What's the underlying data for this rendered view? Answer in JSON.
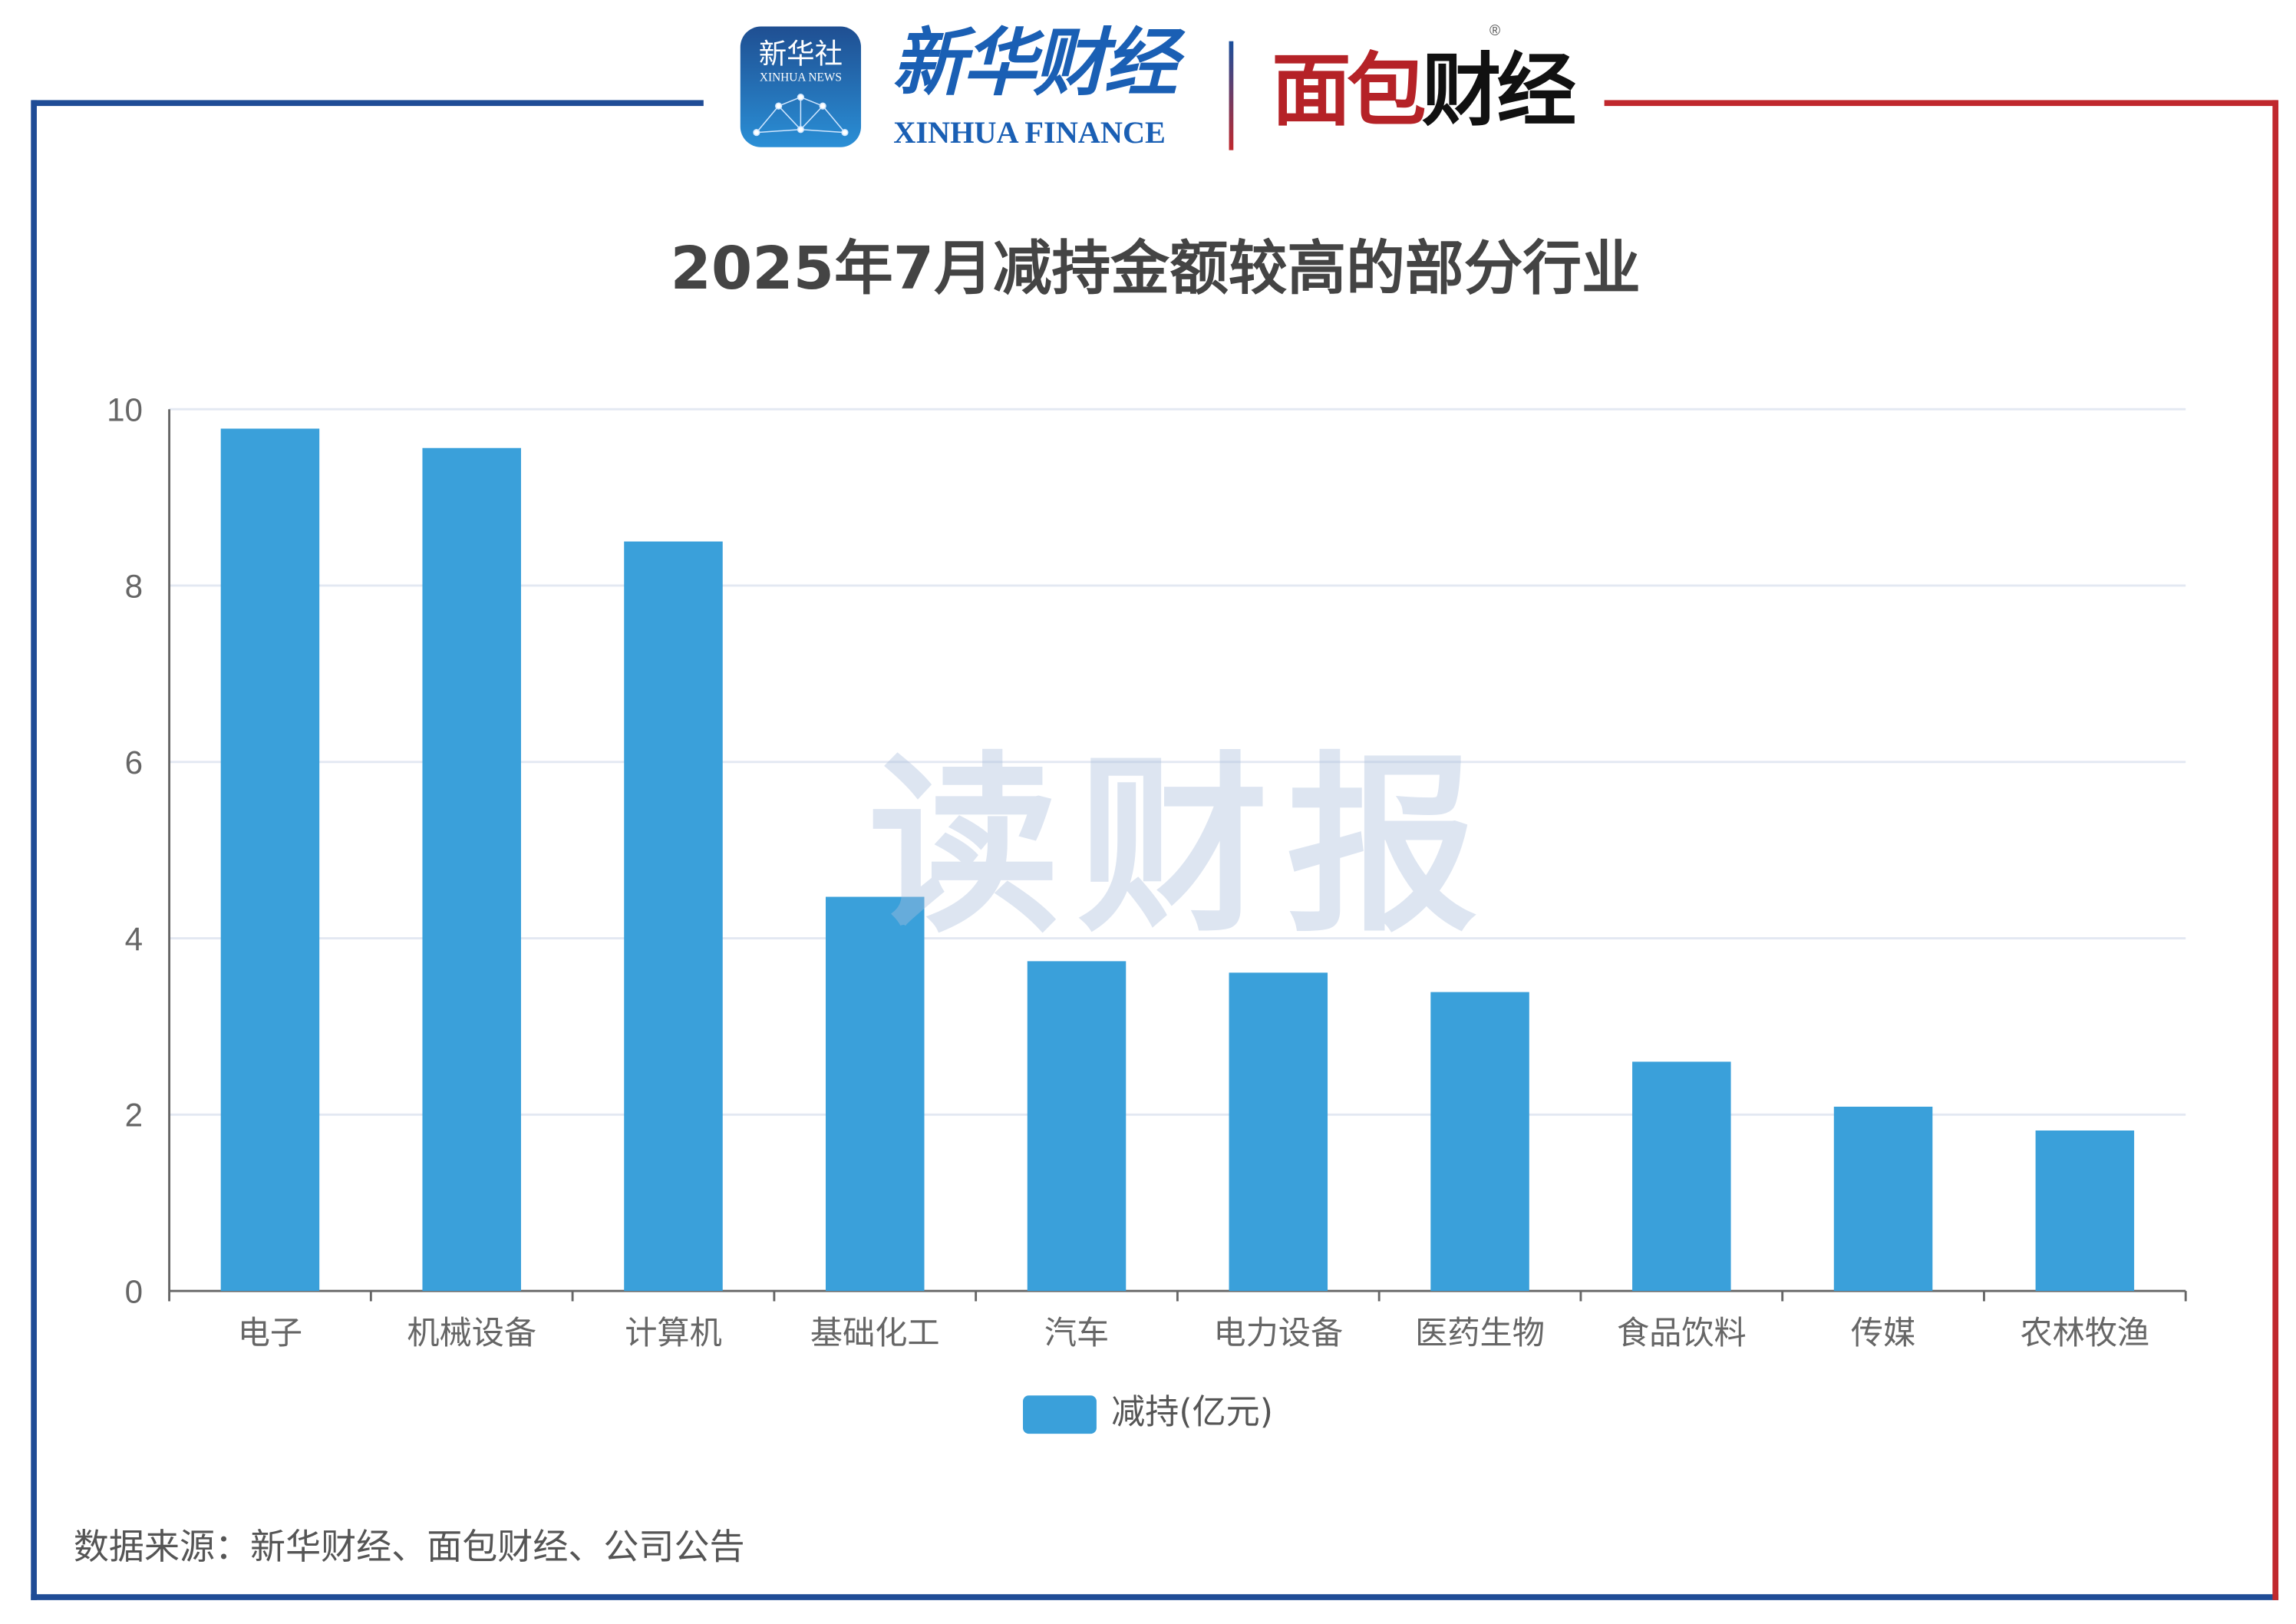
{
  "header": {
    "xinhua_news_logo": {
      "cn": "新华社",
      "en": "XINHUA NEWS"
    },
    "xinhua_finance_logo": {
      "cn": "新华财经",
      "en": "XINHUA FINANCE"
    },
    "mianbao_logo": {
      "cn_red": "面包",
      "cn_black": "财经",
      "registered": "®"
    }
  },
  "watermark": "读财报",
  "source": "数据来源：新华财经、面包财经、公司公告",
  "colors": {
    "bar": "#3aa0da",
    "frame_left": "#1f4c96",
    "frame_right": "#c0282d",
    "grid": "#e3e8f2"
  },
  "chart_data": {
    "type": "bar",
    "title": "2025年7月减持金额较高的部分行业",
    "categories": [
      "电子",
      "机械设备",
      "计算机",
      "基础化工",
      "汽车",
      "电力设备",
      "医药生物",
      "食品饮料",
      "传媒",
      "农林牧渔"
    ],
    "series": [
      {
        "name": "减持(亿元)",
        "values": [
          9.78,
          9.56,
          8.5,
          4.47,
          3.74,
          3.61,
          3.39,
          2.6,
          2.09,
          1.82
        ]
      }
    ],
    "ylim": [
      0,
      10
    ],
    "yticks": [
      "0",
      "2",
      "4",
      "6",
      "8",
      "10"
    ],
    "xlabel": "",
    "ylabel": "",
    "grid": true,
    "legend": "bottom-center"
  }
}
